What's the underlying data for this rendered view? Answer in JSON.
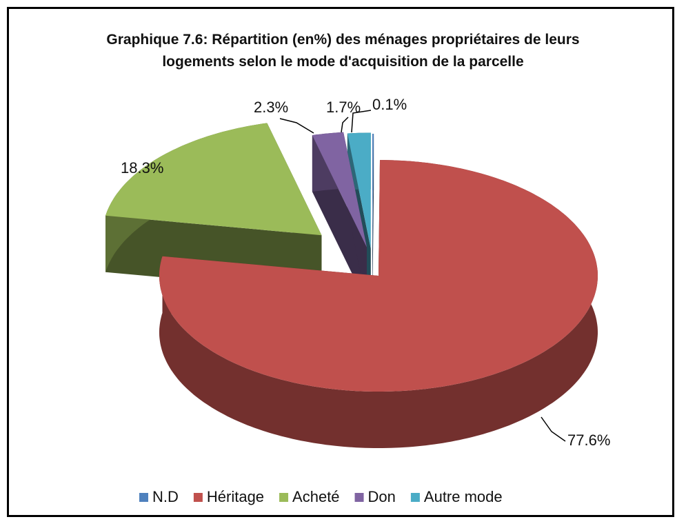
{
  "chart_data": {
    "type": "pie",
    "title": "Graphique 7.6: Répartition (en%) des ménages propriétaires de leurs logements selon le mode d'acquisition de la parcelle",
    "categories": [
      "N.D",
      "Héritage",
      "Acheté",
      "Don",
      "Autre mode"
    ],
    "values": [
      0.1,
      77.6,
      18.3,
      2.3,
      1.7
    ],
    "value_labels": [
      "0.1%",
      "77.6%",
      "18.3%",
      "2.3%",
      "1.7%"
    ],
    "colors": [
      "#4f81bd",
      "#c0504d",
      "#9bbb59",
      "#8064a2",
      "#4bacc6"
    ],
    "legend": "bottom"
  }
}
